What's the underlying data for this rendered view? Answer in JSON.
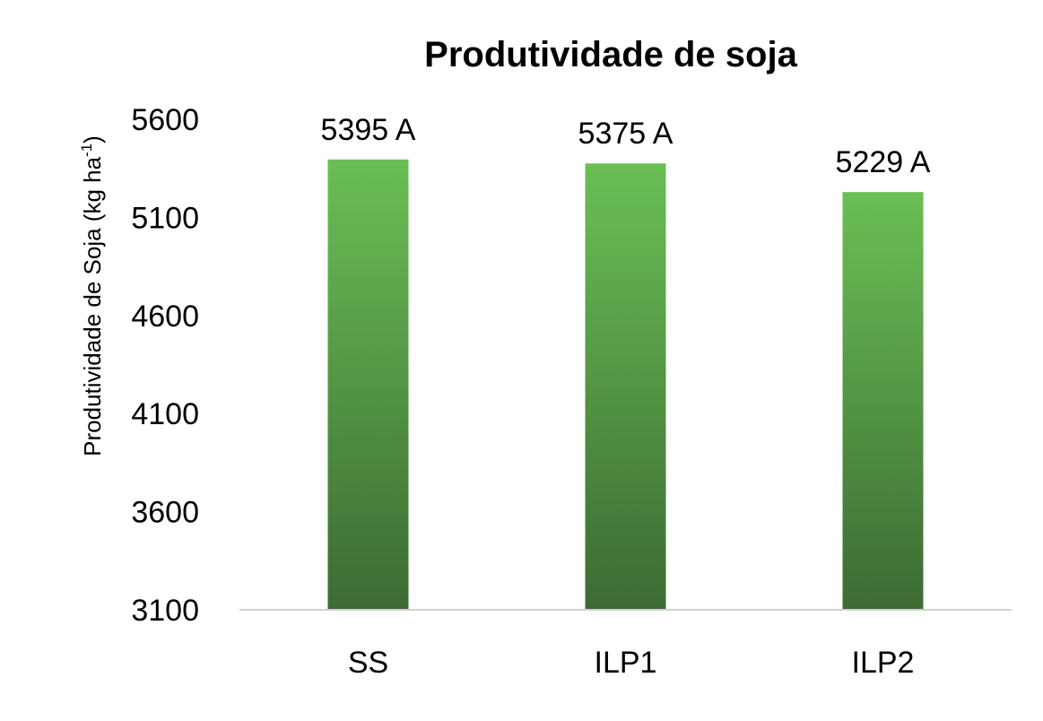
{
  "chart_data": {
    "type": "bar",
    "title": "Produtividade de soja",
    "ylabel": {
      "main": "Produtividade de Soja (kg ha",
      "superscript": "-1",
      "close": ")"
    },
    "xlabel": "",
    "categories": [
      "SS",
      "ILP1",
      "ILP2"
    ],
    "values": [
      5395,
      5375,
      5229
    ],
    "data_labels": [
      "5395 A",
      "5375 A",
      "5229 A"
    ],
    "ylim": [
      3100,
      5600
    ],
    "yticks": [
      "3100",
      "3600",
      "4100",
      "4600",
      "5100",
      "5600"
    ],
    "grid": false,
    "legend": "none",
    "colors": {
      "bar_top": "#6abf55",
      "bar_bottom": "#3c6b33",
      "axis_line": "#d0d0d0"
    }
  }
}
